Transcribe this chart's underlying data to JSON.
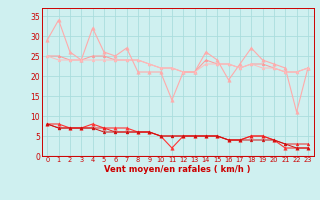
{
  "title": "",
  "xlabel": "Vent moyen/en rafales ( km/h )",
  "background_color": "#cff0f0",
  "grid_color": "#aadddd",
  "x": [
    0,
    1,
    2,
    3,
    4,
    5,
    6,
    7,
    8,
    9,
    10,
    11,
    12,
    13,
    14,
    15,
    16,
    17,
    18,
    19,
    20,
    21,
    22,
    23
  ],
  "series": [
    {
      "name": "rafales_high",
      "color": "#ffaaaa",
      "marker": "^",
      "markersize": 2.5,
      "linewidth": 0.8,
      "y": [
        29,
        34,
        26,
        24,
        32,
        26,
        25,
        27,
        21,
        21,
        21,
        14,
        21,
        21,
        26,
        24,
        19,
        23,
        27,
        24,
        23,
        22,
        11,
        22
      ]
    },
    {
      "name": "rafales_mid1",
      "color": "#ff9999",
      "marker": "^",
      "markersize": 2.0,
      "linewidth": 0.7,
      "y": [
        25,
        25,
        24,
        24,
        25,
        25,
        24,
        24,
        24,
        23,
        22,
        22,
        21,
        21,
        24,
        23,
        23,
        22,
        23,
        23,
        22,
        21,
        21,
        22
      ]
    },
    {
      "name": "rafales_mid2",
      "color": "#ffbbbb",
      "marker": "^",
      "markersize": 2.0,
      "linewidth": 0.7,
      "y": [
        25,
        24,
        24,
        24,
        24,
        24,
        24,
        24,
        24,
        23,
        22,
        22,
        21,
        21,
        23,
        23,
        23,
        22,
        23,
        22,
        22,
        21,
        21,
        22
      ]
    },
    {
      "name": "vent_high",
      "color": "#ff3333",
      "marker": "^",
      "markersize": 2.5,
      "linewidth": 0.8,
      "y": [
        8,
        8,
        7,
        7,
        8,
        7,
        7,
        7,
        6,
        6,
        5,
        2,
        5,
        5,
        5,
        5,
        4,
        4,
        5,
        5,
        4,
        2,
        2,
        2
      ]
    },
    {
      "name": "vent_mid1",
      "color": "#ee2222",
      "marker": "^",
      "markersize": 2.0,
      "linewidth": 0.7,
      "y": [
        8,
        7,
        7,
        7,
        7,
        7,
        6,
        6,
        6,
        6,
        5,
        5,
        5,
        5,
        5,
        5,
        4,
        4,
        5,
        5,
        4,
        3,
        3,
        3
      ]
    },
    {
      "name": "vent_mid2",
      "color": "#cc1111",
      "marker": "^",
      "markersize": 2.0,
      "linewidth": 0.7,
      "y": [
        8,
        7,
        7,
        7,
        7,
        6,
        6,
        6,
        6,
        6,
        5,
        5,
        5,
        5,
        5,
        5,
        4,
        4,
        4,
        4,
        4,
        3,
        2,
        2
      ]
    }
  ],
  "xlim": [
    -0.5,
    23.5
  ],
  "ylim": [
    0,
    37
  ],
  "yticks": [
    0,
    5,
    10,
    15,
    20,
    25,
    30,
    35
  ],
  "xticks": [
    0,
    1,
    2,
    3,
    4,
    5,
    6,
    7,
    8,
    9,
    10,
    11,
    12,
    13,
    14,
    15,
    16,
    17,
    18,
    19,
    20,
    21,
    22,
    23
  ],
  "xlabel_fontsize": 6.0,
  "ylabel_fontsize": 5.5,
  "xlabel_color": "#cc0000",
  "tick_color": "#cc0000"
}
